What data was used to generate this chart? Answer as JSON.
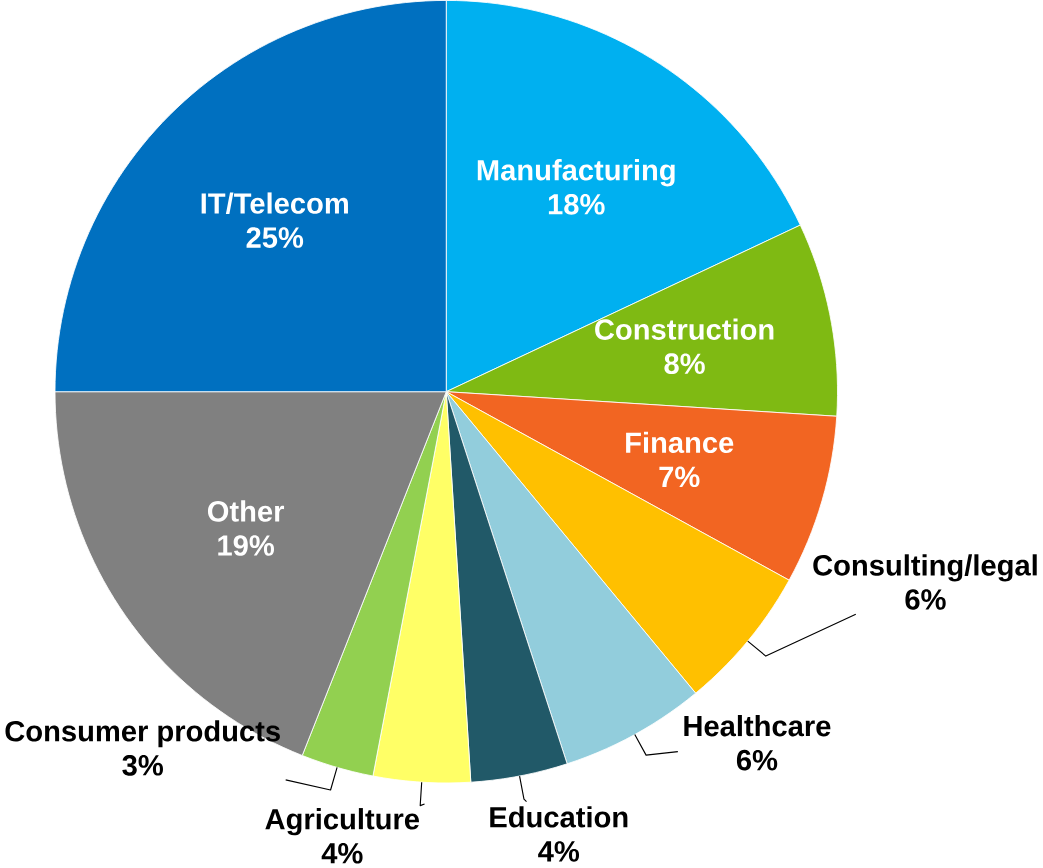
{
  "chart_data": {
    "type": "pie",
    "categories": [
      "Manufacturing",
      "Construction",
      "Finance",
      "Consulting/legal",
      "Healthcare",
      "Education",
      "Agriculture",
      "Consumer products",
      "Other",
      "IT/Telecom"
    ],
    "values": [
      18,
      8,
      7,
      6,
      6,
      4,
      4,
      3,
      19,
      25
    ],
    "value_labels": [
      "18%",
      "8%",
      "7%",
      "6%",
      "6%",
      "4%",
      "4%",
      "3%",
      "19%",
      "25%"
    ],
    "colors": [
      "#00b0f0",
      "#7fba13",
      "#f26522",
      "#ffc000",
      "#92cddc",
      "#215968",
      "#ffff66",
      "#92d050",
      "#808080",
      "#0070c0"
    ]
  }
}
